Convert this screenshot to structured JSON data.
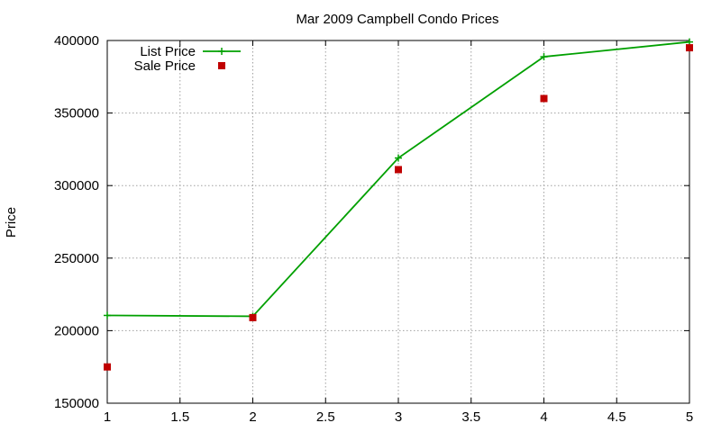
{
  "chart_data": {
    "type": "line",
    "title": "Mar 2009 Campbell Condo Prices",
    "xlabel": "",
    "ylabel": "Price",
    "xlim": [
      1,
      5
    ],
    "ylim": [
      150000,
      400000
    ],
    "x_ticks": [
      1,
      1.5,
      2,
      2.5,
      3,
      3.5,
      4,
      4.5,
      5
    ],
    "y_ticks": [
      150000,
      200000,
      250000,
      300000,
      350000,
      400000
    ],
    "grid": true,
    "legend_position": "top-left",
    "series": [
      {
        "name": "List Price",
        "style": "linespoints",
        "marker": "plus",
        "color": "#00a000",
        "x": [
          1,
          2,
          3,
          4,
          5
        ],
        "y": [
          210500,
          209900,
          319000,
          388800,
          399000
        ]
      },
      {
        "name": "Sale Price",
        "style": "points",
        "marker": "square",
        "color": "#c00000",
        "x": [
          1,
          2,
          3,
          4,
          5
        ],
        "y": [
          175000,
          209000,
          311000,
          360000,
          395000
        ]
      }
    ]
  }
}
